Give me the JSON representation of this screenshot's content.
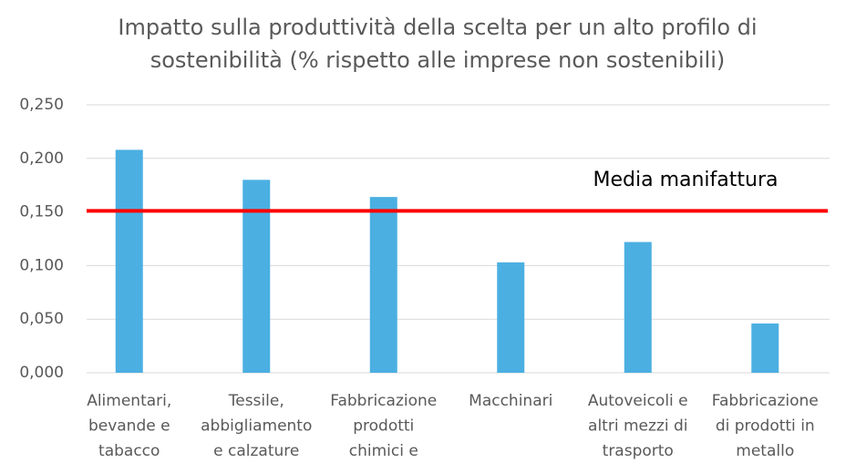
{
  "chart_data": {
    "type": "bar",
    "title": [
      "Impatto sulla produttività della scelta per un alto profilo di",
      "sostenibilità (% rispetto alle imprese non sostenibili)"
    ],
    "categories": [
      [
        "Alimentari,",
        "bevande e",
        "tabacco"
      ],
      [
        "Tessile,",
        "abbigliamento",
        "e calzature"
      ],
      [
        "Fabbricazione",
        "prodotti",
        "chimici e"
      ],
      [
        "Macchinari"
      ],
      [
        "Autoveicoli e",
        "altri mezzi di",
        "trasporto"
      ],
      [
        "Fabbricazione",
        "di prodotti in",
        "metallo"
      ]
    ],
    "values": [
      0.208,
      0.18,
      0.164,
      0.103,
      0.122,
      0.046
    ],
    "color": "#4bafe2",
    "ylim": [
      0,
      0.25
    ],
    "yticks": [
      {
        "value": 0,
        "label": "0,000"
      },
      {
        "value": 0.05,
        "label": "0,050"
      },
      {
        "value": 0.1,
        "label": "0,100"
      },
      {
        "value": 0.15,
        "label": "0,150"
      },
      {
        "value": 0.2,
        "label": "0,200"
      },
      {
        "value": 0.25,
        "label": "0,250"
      }
    ],
    "grid": true,
    "reference_line": {
      "label": "Media manifattura",
      "value": 0.151,
      "color": "#ff0000"
    }
  }
}
